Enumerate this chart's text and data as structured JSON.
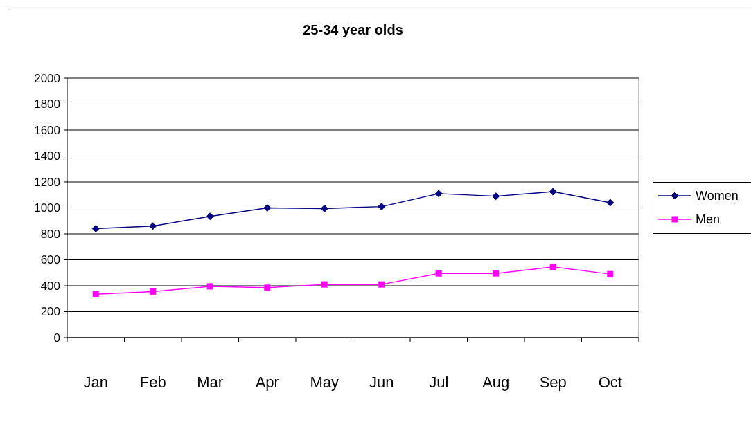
{
  "chart_data": {
    "type": "line",
    "title": "25-34 year olds",
    "categories": [
      "Jan",
      "Feb",
      "Mar",
      "Apr",
      "May",
      "Jun",
      "Jul",
      "Aug",
      "Sep",
      "Oct"
    ],
    "series": [
      {
        "name": "Women",
        "color": "#000080",
        "marker": "diamond",
        "values": [
          840,
          860,
          935,
          1000,
          995,
          1010,
          1110,
          1090,
          1125,
          1040
        ]
      },
      {
        "name": "Men",
        "color": "#ff00ff",
        "marker": "square",
        "values": [
          335,
          355,
          395,
          385,
          410,
          410,
          495,
          495,
          545,
          490
        ]
      }
    ],
    "ylim": [
      0,
      2000
    ],
    "yticks": [
      0,
      200,
      400,
      600,
      800,
      1000,
      1200,
      1400,
      1600,
      1800,
      2000
    ],
    "grid": "y",
    "legend": "right"
  }
}
